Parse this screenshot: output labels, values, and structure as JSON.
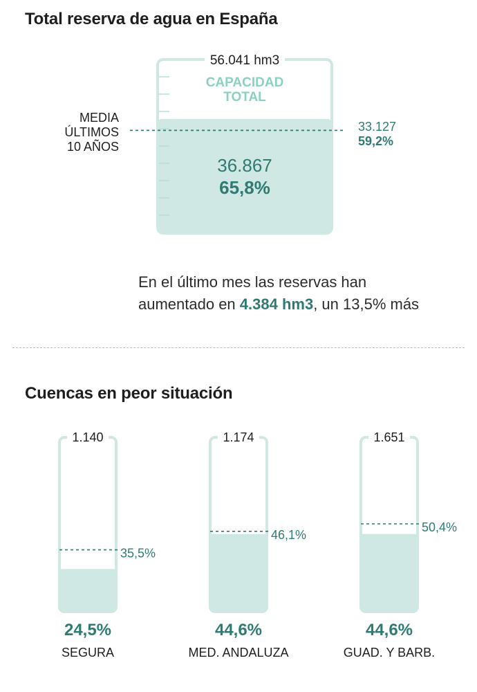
{
  "colors": {
    "outline": "#cfe8e3",
    "fill": "#cfe8e3",
    "accent": "#2f7a73",
    "capacity_label": "#8ad0c3",
    "text": "#1e1e1e",
    "tick": "#b8ddd6"
  },
  "header": {
    "title": "Total reserva de agua en España",
    "subtitle": "Cuencas en peor situación"
  },
  "summary": {
    "before": "En el último mes las reservas han aumentado en ",
    "highlight": "4.384 hm3",
    "after": ", un 13,5% más"
  },
  "chart_data": [
    {
      "type": "bar",
      "title": "Total reserva de agua en España",
      "capacity_label": "56.041 hm3",
      "capacity_text": [
        "CAPACIDAD",
        "TOTAL"
      ],
      "capacity_hm3": 56041,
      "current_value_label": "36.867",
      "current_hm3": 36867,
      "current_pct_label": "65,8%",
      "current_pct": 65.8,
      "average_label": [
        "MEDIA",
        "ÚLTIMOS",
        "10 AÑOS"
      ],
      "average_value_label": "33.127",
      "average_hm3": 33127,
      "average_pct_label": "59,2%",
      "average_pct": 59.2
    },
    {
      "type": "bar",
      "title": "Cuencas en peor situación",
      "basins": [
        {
          "name": "SEGURA",
          "capacity_label": "1.140",
          "current_pct": 24.5,
          "current_label": "24,5%",
          "average_pct": 35.5,
          "average_label": "35,5%"
        },
        {
          "name": "MED. ANDALUZA",
          "capacity_label": "1.174",
          "current_pct": 44.6,
          "current_label": "44,6%",
          "average_pct": 46.1,
          "average_label": "46,1%"
        },
        {
          "name": "GUAD. Y BARB.",
          "capacity_label": "1.651",
          "current_pct": 44.6,
          "current_label": "44,6%",
          "average_pct": 50.4,
          "average_label": "50,4%"
        }
      ]
    }
  ]
}
